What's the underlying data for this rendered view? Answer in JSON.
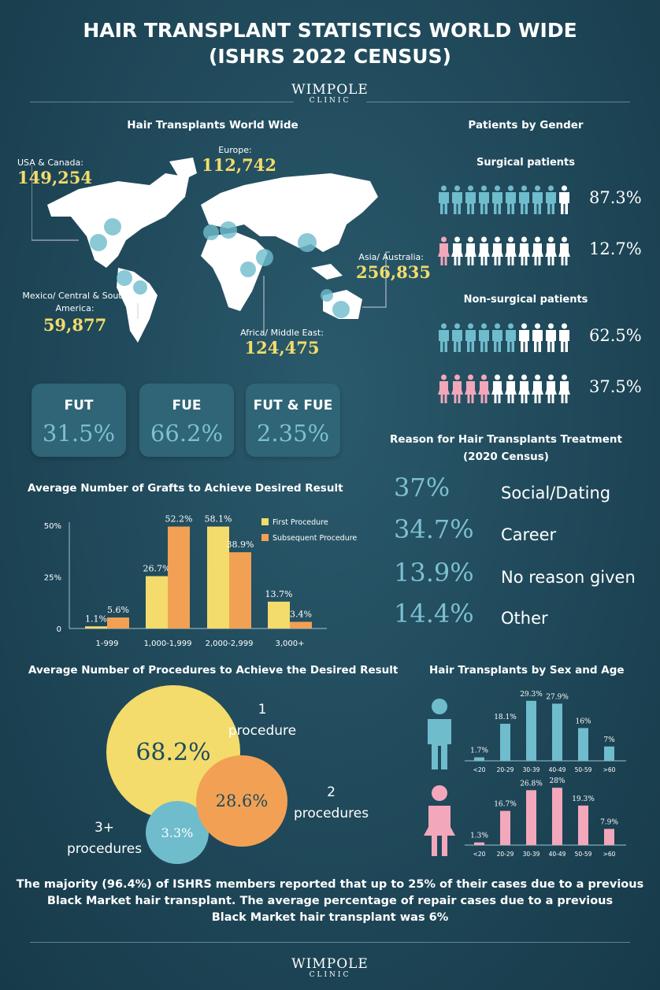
{
  "title": {
    "line1": "HAIR TRANSPLANT STATISTICS WORLD WIDE",
    "line2": "(ISHRS 2022 CENSUS)"
  },
  "logo": {
    "name": "WIMPOLE",
    "sub": "CLINIC"
  },
  "world": {
    "heading": "Hair Transplants World Wide",
    "regions": [
      {
        "label": "USA & Canada:",
        "value": "149,254"
      },
      {
        "label": "Europe:",
        "value": "112,742"
      },
      {
        "label": "Asia/ Australia:",
        "value": "256,835"
      },
      {
        "label": "Mexico/ Central & South America:",
        "value": "59,877"
      },
      {
        "label": "Africa/ Middle East:",
        "value": "124,475"
      }
    ]
  },
  "gender": {
    "heading": "Patients by Gender",
    "surgical_label": "Surgical patients",
    "nonsurgical_label": "Non-surgical patients",
    "rows": [
      {
        "group": "male",
        "percent": 87.3,
        "text": "87.3%"
      },
      {
        "group": "female",
        "percent": 12.7,
        "text": "12.7%"
      },
      {
        "group": "male",
        "percent": 62.5,
        "text": "62.5%"
      },
      {
        "group": "female",
        "percent": 37.5,
        "text": "37.5%"
      }
    ]
  },
  "techniques": [
    {
      "name": "FUT",
      "value": "31.5%"
    },
    {
      "name": "FUE",
      "value": "66.2%"
    },
    {
      "name": "FUT & FUE",
      "value": "2.35%"
    }
  ],
  "reasons": {
    "heading1": "Reason for Hair Transplants Treatment",
    "heading2": "(2020 Census)",
    "items": [
      {
        "value": "37%",
        "label": "Social/Dating"
      },
      {
        "value": "34.7%",
        "label": "Career"
      },
      {
        "value": "13.9%",
        "label": "No reason given"
      },
      {
        "value": "14.4%",
        "label": "Other"
      }
    ]
  },
  "procedures": {
    "heading": "Average Number of Procedures to Achieve the Desired Result",
    "items": [
      {
        "value": "68.2%",
        "l1": "1",
        "l2": "procedure"
      },
      {
        "value": "28.6%",
        "l1": "2",
        "l2": "procedures"
      },
      {
        "value": "3.3%",
        "l1": "3+",
        "l2": "procedures"
      }
    ]
  },
  "footer": {
    "line1": "The majority (96.4%) of ISHRS members reported that up to 25% of their cases due to a previous",
    "line2": "Black Market hair transplant. The average percentage of repair cases due to a previous",
    "line3": "Black Market hair transplant was 6%"
  },
  "colors": {
    "yellow": "#f3dc6b",
    "orange": "#f2a154",
    "teal": "#6fbccd",
    "pink": "#f3a7bb"
  },
  "chart_data": [
    {
      "type": "bar",
      "title": "Average Number of Grafts to Achieve Desired Result",
      "categories": [
        "1-999",
        "1,000-1,999",
        "2,000-2,999",
        "3,000+"
      ],
      "yticks": [
        "0",
        "25%",
        "50%"
      ],
      "legend": "top-right",
      "series": [
        {
          "name": "First Procedure",
          "values": [
            1.1,
            26.7,
            58.1,
            13.7
          ],
          "labels": [
            "1.1%",
            "26.7%",
            "58.1%",
            "13.7%"
          ]
        },
        {
          "name": "Subsequent Procedure",
          "values": [
            5.6,
            52.2,
            38.9,
            3.4
          ],
          "labels": [
            "5.6%",
            "52.2%",
            "38.9%",
            "3.4%"
          ]
        }
      ]
    },
    {
      "type": "bar",
      "title": "Hair Transplants by Sex and Age",
      "categories": [
        "<20",
        "20-29",
        "30-39",
        "40-49",
        "50-59",
        ">60"
      ],
      "series": [
        {
          "group": "male",
          "values": [
            1.7,
            18.1,
            29.3,
            27.9,
            16,
            7
          ],
          "labels": [
            "1.7%",
            "18.1%",
            "29.3%",
            "27.9%",
            "16%",
            "7%"
          ]
        },
        {
          "group": "female",
          "values": [
            1.3,
            16.7,
            26.8,
            28,
            19.3,
            7.9
          ],
          "labels": [
            "1.3%",
            "16.7%",
            "26.8%",
            "28%",
            "19.3%",
            "7.9%"
          ]
        }
      ]
    }
  ]
}
